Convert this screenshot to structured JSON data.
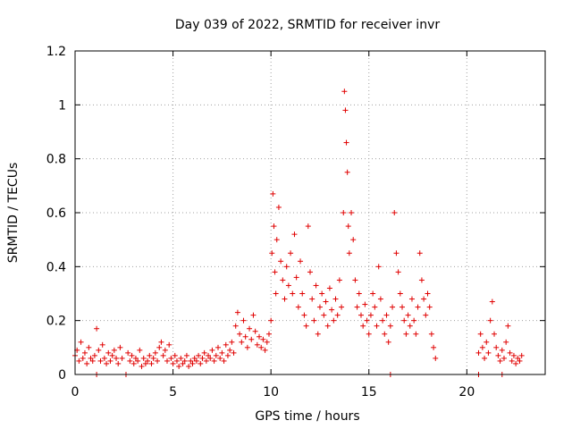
{
  "chart_data": {
    "type": "scatter",
    "title": "Day 039 of 2022, SRMTID for receiver invr",
    "xlabel": "GPS time / hours",
    "ylabel": "SRMTID / TECUs",
    "xlim": [
      0,
      24
    ],
    "ylim": [
      0,
      1.2
    ],
    "xticks": [
      0,
      5,
      10,
      15,
      20
    ],
    "yticks": [
      0,
      0.2,
      0.4,
      0.6,
      0.8,
      1,
      1.2
    ],
    "xtick_labels": [
      "0",
      "5",
      "10",
      "15",
      "20"
    ],
    "ytick_labels": [
      "0",
      "0.2",
      "0.4",
      "0.6",
      "0.8",
      "1",
      "1.2"
    ],
    "grid": true,
    "marker": "plus",
    "color": "#e00000",
    "series": [
      {
        "name": "SRMTID",
        "points": [
          [
            0.0,
            0.07
          ],
          [
            0.1,
            0.09
          ],
          [
            0.2,
            0.05
          ],
          [
            0.3,
            0.12
          ],
          [
            0.4,
            0.06
          ],
          [
            0.5,
            0.08
          ],
          [
            0.6,
            0.04
          ],
          [
            0.7,
            0.1
          ],
          [
            0.8,
            0.06
          ],
          [
            0.9,
            0.05
          ],
          [
            1.0,
            0.07
          ],
          [
            1.1,
            0.17
          ],
          [
            1.2,
            0.09
          ],
          [
            1.3,
            0.05
          ],
          [
            1.4,
            0.11
          ],
          [
            1.5,
            0.06
          ],
          [
            1.6,
            0.04
          ],
          [
            1.7,
            0.08
          ],
          [
            1.8,
            0.05
          ],
          [
            1.9,
            0.07
          ],
          [
            2.0,
            0.09
          ],
          [
            2.1,
            0.06
          ],
          [
            2.2,
            0.04
          ],
          [
            2.3,
            0.1
          ],
          [
            2.4,
            0.06
          ],
          [
            2.7,
            0.08
          ],
          [
            2.8,
            0.05
          ],
          [
            2.9,
            0.07
          ],
          [
            3.0,
            0.04
          ],
          [
            3.1,
            0.06
          ],
          [
            3.2,
            0.05
          ],
          [
            3.3,
            0.09
          ],
          [
            3.4,
            0.03
          ],
          [
            3.5,
            0.06
          ],
          [
            3.6,
            0.04
          ],
          [
            3.7,
            0.05
          ],
          [
            3.8,
            0.07
          ],
          [
            3.9,
            0.04
          ],
          [
            4.0,
            0.06
          ],
          [
            4.1,
            0.08
          ],
          [
            4.2,
            0.05
          ],
          [
            4.3,
            0.1
          ],
          [
            4.4,
            0.12
          ],
          [
            4.5,
            0.07
          ],
          [
            4.6,
            0.09
          ],
          [
            4.7,
            0.05
          ],
          [
            4.8,
            0.11
          ],
          [
            4.9,
            0.06
          ],
          [
            5.0,
            0.04
          ],
          [
            5.1,
            0.07
          ],
          [
            5.2,
            0.05
          ],
          [
            5.3,
            0.03
          ],
          [
            5.4,
            0.06
          ],
          [
            5.5,
            0.04
          ],
          [
            5.6,
            0.05
          ],
          [
            5.7,
            0.07
          ],
          [
            5.8,
            0.03
          ],
          [
            5.9,
            0.05
          ],
          [
            6.0,
            0.04
          ],
          [
            6.1,
            0.06
          ],
          [
            6.2,
            0.05
          ],
          [
            6.3,
            0.07
          ],
          [
            6.4,
            0.04
          ],
          [
            6.5,
            0.06
          ],
          [
            6.6,
            0.08
          ],
          [
            6.7,
            0.05
          ],
          [
            6.8,
            0.07
          ],
          [
            6.9,
            0.06
          ],
          [
            7.0,
            0.09
          ],
          [
            7.1,
            0.05
          ],
          [
            7.2,
            0.07
          ],
          [
            7.3,
            0.1
          ],
          [
            7.4,
            0.06
          ],
          [
            7.5,
            0.08
          ],
          [
            7.6,
            0.05
          ],
          [
            7.7,
            0.11
          ],
          [
            7.8,
            0.07
          ],
          [
            7.9,
            0.09
          ],
          [
            8.0,
            0.12
          ],
          [
            8.1,
            0.08
          ],
          [
            8.2,
            0.18
          ],
          [
            8.3,
            0.23
          ],
          [
            8.4,
            0.15
          ],
          [
            8.5,
            0.12
          ],
          [
            8.6,
            0.2
          ],
          [
            8.7,
            0.14
          ],
          [
            8.8,
            0.1
          ],
          [
            8.9,
            0.17
          ],
          [
            9.0,
            0.13
          ],
          [
            9.1,
            0.22
          ],
          [
            9.2,
            0.16
          ],
          [
            9.3,
            0.11
          ],
          [
            9.4,
            0.14
          ],
          [
            9.5,
            0.1
          ],
          [
            9.6,
            0.13
          ],
          [
            9.7,
            0.09
          ],
          [
            9.8,
            0.12
          ],
          [
            9.9,
            0.15
          ],
          [
            10.0,
            0.2
          ],
          [
            10.05,
            0.45
          ],
          [
            10.1,
            0.67
          ],
          [
            10.15,
            0.55
          ],
          [
            10.2,
            0.38
          ],
          [
            10.25,
            0.3
          ],
          [
            10.3,
            0.5
          ],
          [
            10.4,
            0.62
          ],
          [
            10.5,
            0.42
          ],
          [
            10.6,
            0.35
          ],
          [
            10.7,
            0.28
          ],
          [
            10.8,
            0.4
          ],
          [
            10.9,
            0.33
          ],
          [
            11.0,
            0.45
          ],
          [
            11.1,
            0.3
          ],
          [
            11.2,
            0.52
          ],
          [
            11.3,
            0.36
          ],
          [
            11.4,
            0.25
          ],
          [
            11.5,
            0.42
          ],
          [
            11.6,
            0.3
          ],
          [
            11.7,
            0.22
          ],
          [
            11.8,
            0.18
          ],
          [
            11.9,
            0.55
          ],
          [
            12.0,
            0.38
          ],
          [
            12.1,
            0.28
          ],
          [
            12.2,
            0.2
          ],
          [
            12.3,
            0.33
          ],
          [
            12.4,
            0.15
          ],
          [
            12.5,
            0.25
          ],
          [
            12.6,
            0.3
          ],
          [
            12.7,
            0.22
          ],
          [
            12.8,
            0.27
          ],
          [
            12.9,
            0.18
          ],
          [
            13.0,
            0.32
          ],
          [
            13.1,
            0.24
          ],
          [
            13.2,
            0.2
          ],
          [
            13.3,
            0.28
          ],
          [
            13.4,
            0.22
          ],
          [
            13.5,
            0.35
          ],
          [
            13.6,
            0.25
          ],
          [
            13.7,
            0.6
          ],
          [
            13.75,
            1.05
          ],
          [
            13.8,
            0.98
          ],
          [
            13.85,
            0.86
          ],
          [
            13.9,
            0.75
          ],
          [
            13.95,
            0.55
          ],
          [
            14.0,
            0.45
          ],
          [
            14.1,
            0.6
          ],
          [
            14.2,
            0.5
          ],
          [
            14.3,
            0.35
          ],
          [
            14.4,
            0.25
          ],
          [
            14.5,
            0.3
          ],
          [
            14.6,
            0.22
          ],
          [
            14.7,
            0.18
          ],
          [
            14.8,
            0.26
          ],
          [
            14.9,
            0.2
          ],
          [
            15.0,
            0.15
          ],
          [
            15.1,
            0.22
          ],
          [
            15.2,
            0.3
          ],
          [
            15.3,
            0.25
          ],
          [
            15.4,
            0.18
          ],
          [
            15.5,
            0.4
          ],
          [
            15.6,
            0.28
          ],
          [
            15.7,
            0.2
          ],
          [
            15.8,
            0.15
          ],
          [
            15.9,
            0.22
          ],
          [
            16.0,
            0.12
          ],
          [
            16.1,
            0.18
          ],
          [
            16.2,
            0.25
          ],
          [
            16.3,
            0.6
          ],
          [
            16.4,
            0.45
          ],
          [
            16.5,
            0.38
          ],
          [
            16.6,
            0.3
          ],
          [
            16.7,
            0.25
          ],
          [
            16.8,
            0.2
          ],
          [
            16.9,
            0.15
          ],
          [
            17.0,
            0.22
          ],
          [
            17.1,
            0.18
          ],
          [
            17.2,
            0.28
          ],
          [
            17.3,
            0.2
          ],
          [
            17.4,
            0.15
          ],
          [
            17.5,
            0.25
          ],
          [
            17.6,
            0.45
          ],
          [
            17.7,
            0.35
          ],
          [
            17.8,
            0.28
          ],
          [
            17.9,
            0.22
          ],
          [
            18.0,
            0.3
          ],
          [
            18.1,
            0.25
          ],
          [
            18.2,
            0.15
          ],
          [
            18.3,
            0.1
          ],
          [
            18.4,
            0.06
          ],
          [
            20.6,
            0.08
          ],
          [
            20.7,
            0.15
          ],
          [
            20.8,
            0.1
          ],
          [
            20.9,
            0.06
          ],
          [
            21.0,
            0.12
          ],
          [
            21.1,
            0.08
          ],
          [
            21.2,
            0.2
          ],
          [
            21.3,
            0.27
          ],
          [
            21.4,
            0.15
          ],
          [
            21.5,
            0.1
          ],
          [
            21.6,
            0.07
          ],
          [
            21.7,
            0.05
          ],
          [
            21.8,
            0.09
          ],
          [
            21.9,
            0.06
          ],
          [
            22.0,
            0.12
          ],
          [
            22.1,
            0.18
          ],
          [
            22.2,
            0.08
          ],
          [
            22.3,
            0.05
          ],
          [
            22.4,
            0.07
          ],
          [
            22.5,
            0.04
          ],
          [
            22.6,
            0.06
          ],
          [
            22.7,
            0.05
          ],
          [
            22.8,
            0.07
          ],
          [
            1.1,
            0.0
          ],
          [
            2.6,
            0.0
          ],
          [
            16.1,
            0.0
          ],
          [
            20.6,
            0.0
          ],
          [
            21.8,
            0.0
          ]
        ]
      }
    ]
  }
}
